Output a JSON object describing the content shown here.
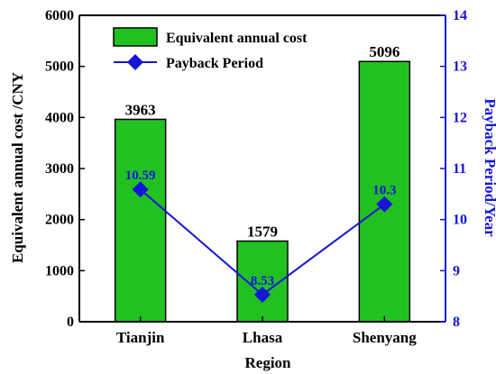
{
  "chart_data": {
    "type": "bar",
    "categories": [
      "Tianjin",
      "Lhasa",
      "Shenyang"
    ],
    "xlabel": "Region",
    "colors": {
      "bar_fill": "#22c122",
      "bar_stroke": "#000000",
      "line": "#1515d8",
      "right_axis": "#1515d8"
    },
    "series": [
      {
        "name": "Equivalent annual cost",
        "type": "bar",
        "axis": "left",
        "values": [
          3963,
          1579,
          5096
        ],
        "labels": [
          "3963",
          "1579",
          "5096"
        ]
      },
      {
        "name": "Payback Period",
        "type": "line",
        "axis": "right",
        "marker": "diamond",
        "values": [
          10.59,
          8.53,
          10.3
        ],
        "labels": [
          "10.59",
          "8.53",
          "10.3"
        ]
      }
    ],
    "left_axis": {
      "label": "Equivalent annual cost /CNY",
      "ylim": [
        0,
        6000
      ],
      "ticks": [
        "0",
        "1000",
        "2000",
        "3000",
        "4000",
        "5000",
        "6000"
      ]
    },
    "right_axis": {
      "label": "Payback Period/Year",
      "ylim": [
        8,
        14
      ],
      "ticks": [
        "8",
        "9",
        "10",
        "11",
        "12",
        "13",
        "14"
      ]
    },
    "grid": false,
    "legend": {
      "position": "top-left-inside"
    }
  }
}
